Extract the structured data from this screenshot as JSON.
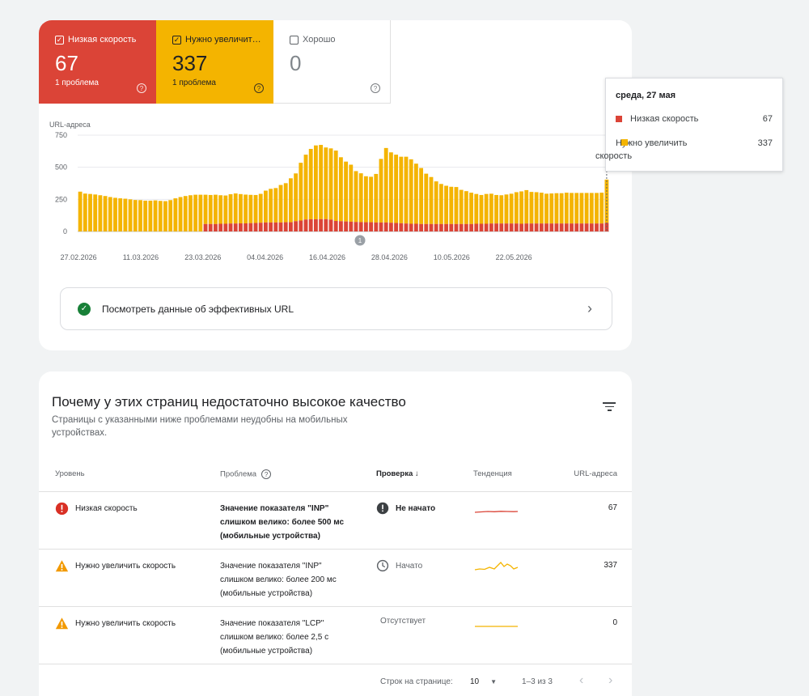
{
  "tabs": [
    {
      "label": "Низкая скорость",
      "count": "67",
      "issues": "1 проблема",
      "checked": true
    },
    {
      "label": "Нужно увеличит…",
      "count": "337",
      "issues": "1 проблема",
      "checked": true
    },
    {
      "label": "Хорошо",
      "count": "0",
      "issues": "",
      "checked": false
    }
  ],
  "colors": {
    "poor": "#db4437",
    "needs_improvement": "#f4b400",
    "good_check": "#188038"
  },
  "chart_data": {
    "type": "bar",
    "stacked": true,
    "ylabel": "URL-адреса",
    "yticks": [
      0,
      250,
      500,
      750
    ],
    "ylim": [
      0,
      750
    ],
    "x_tick_labels": [
      "27.02.2026",
      "11.03.2026",
      "23.03.2026",
      "04.04.2026",
      "16.04.2026",
      "28.04.2026",
      "10.05.2026",
      "22.05.2026"
    ],
    "annotation": "1",
    "series": [
      {
        "name": "Низкая скорость",
        "values": [
          0,
          0,
          0,
          0,
          0,
          0,
          0,
          0,
          0,
          0,
          0,
          0,
          0,
          0,
          0,
          0,
          0,
          0,
          0,
          0,
          0,
          0,
          0,
          0,
          0,
          58,
          58,
          58,
          60,
          60,
          62,
          62,
          63,
          63,
          65,
          66,
          68,
          70,
          70,
          70,
          70,
          72,
          72,
          80,
          85,
          93,
          95,
          95,
          96,
          96,
          92,
          82,
          80,
          78,
          76,
          74,
          73,
          72,
          72,
          70,
          70,
          70,
          68,
          66,
          64,
          62,
          60,
          60,
          58,
          58,
          58,
          58,
          58,
          58,
          58,
          58,
          58,
          58,
          58,
          60,
          60,
          60,
          62,
          62,
          62,
          62,
          62,
          62,
          60,
          62,
          62,
          62,
          62,
          62,
          62,
          62,
          62,
          62,
          62,
          62,
          62,
          62,
          62,
          62,
          62,
          67
        ]
      },
      {
        "name": "Нужно увеличить скорость",
        "values": [
          310,
          295,
          292,
          288,
          282,
          276,
          268,
          262,
          258,
          255,
          250,
          245,
          244,
          240,
          240,
          242,
          238,
          236,
          244,
          258,
          268,
          276,
          282,
          286,
          286,
          228,
          226,
          228,
          222,
          220,
          228,
          234,
          228,
          224,
          220,
          218,
          225,
          248,
          262,
          268,
          292,
          304,
          342,
          372,
          450,
          505,
          548,
          575,
          578,
          558,
          555,
          548,
          498,
          466,
          444,
          396,
          380,
          358,
          354,
          378,
          495,
          580,
          548,
          532,
          518,
          520,
          502,
          468,
          436,
          392,
          366,
          332,
          312,
          298,
          290,
          288,
          266,
          256,
          244,
          232,
          224,
          232,
          232,
          222,
          220,
          226,
          232,
          244,
          252,
          260,
          246,
          244,
          240,
          232,
          234,
          236,
          236,
          240,
          238,
          238,
          238,
          238,
          238,
          238,
          240,
          337
        ]
      }
    ]
  },
  "tooltip": {
    "date": "среда, 27 мая",
    "rows": [
      {
        "label": "Низкая скорость",
        "value": "67"
      },
      {
        "label": "Нужно увеличить скорость",
        "value": "337"
      }
    ]
  },
  "good_urls_link": "Посмотреть данные об эффективных URL",
  "issues": {
    "title": "Почему у этих страниц недостаточно высокое качество",
    "subtitle": "Страницы с указанными ниже проблемами неудобны на мобильных устройствах.",
    "columns": {
      "level": "Уровень",
      "problem": "Проблема",
      "check": "Проверка",
      "trend": "Тенденция",
      "urls": "URL-адреса"
    },
    "rows": [
      {
        "level": "Низкая скорость",
        "level_icon": "error-icon",
        "problem": "Значение показателя \"INP\" слишком велико: более 500 мс (мобильные устройства)",
        "check": "Не начато",
        "check_icon": "exclamation-icon",
        "urls": "67",
        "trend_color": "#db4437"
      },
      {
        "level": "Нужно увеличить скорость",
        "level_icon": "warning-icon",
        "problem": "Значение показателя \"INP\" слишком велико: более 200 мс (мобильные устройства)",
        "check": "Начато",
        "check_icon": "clock-icon",
        "urls": "337",
        "trend_color": "#f4b400"
      },
      {
        "level": "Нужно увеличить скорость",
        "level_icon": "warning-icon",
        "problem": "Значение показателя \"LCP\" слишком велико: более 2,5 с (мобильные устройства)",
        "check": "Отсутствует",
        "check_icon": "",
        "urls": "0",
        "trend_color": "#f4b400"
      }
    ],
    "pagination": {
      "rows_label": "Строк на странице:",
      "rows_value": "10",
      "range": "1–3 из 3"
    }
  }
}
